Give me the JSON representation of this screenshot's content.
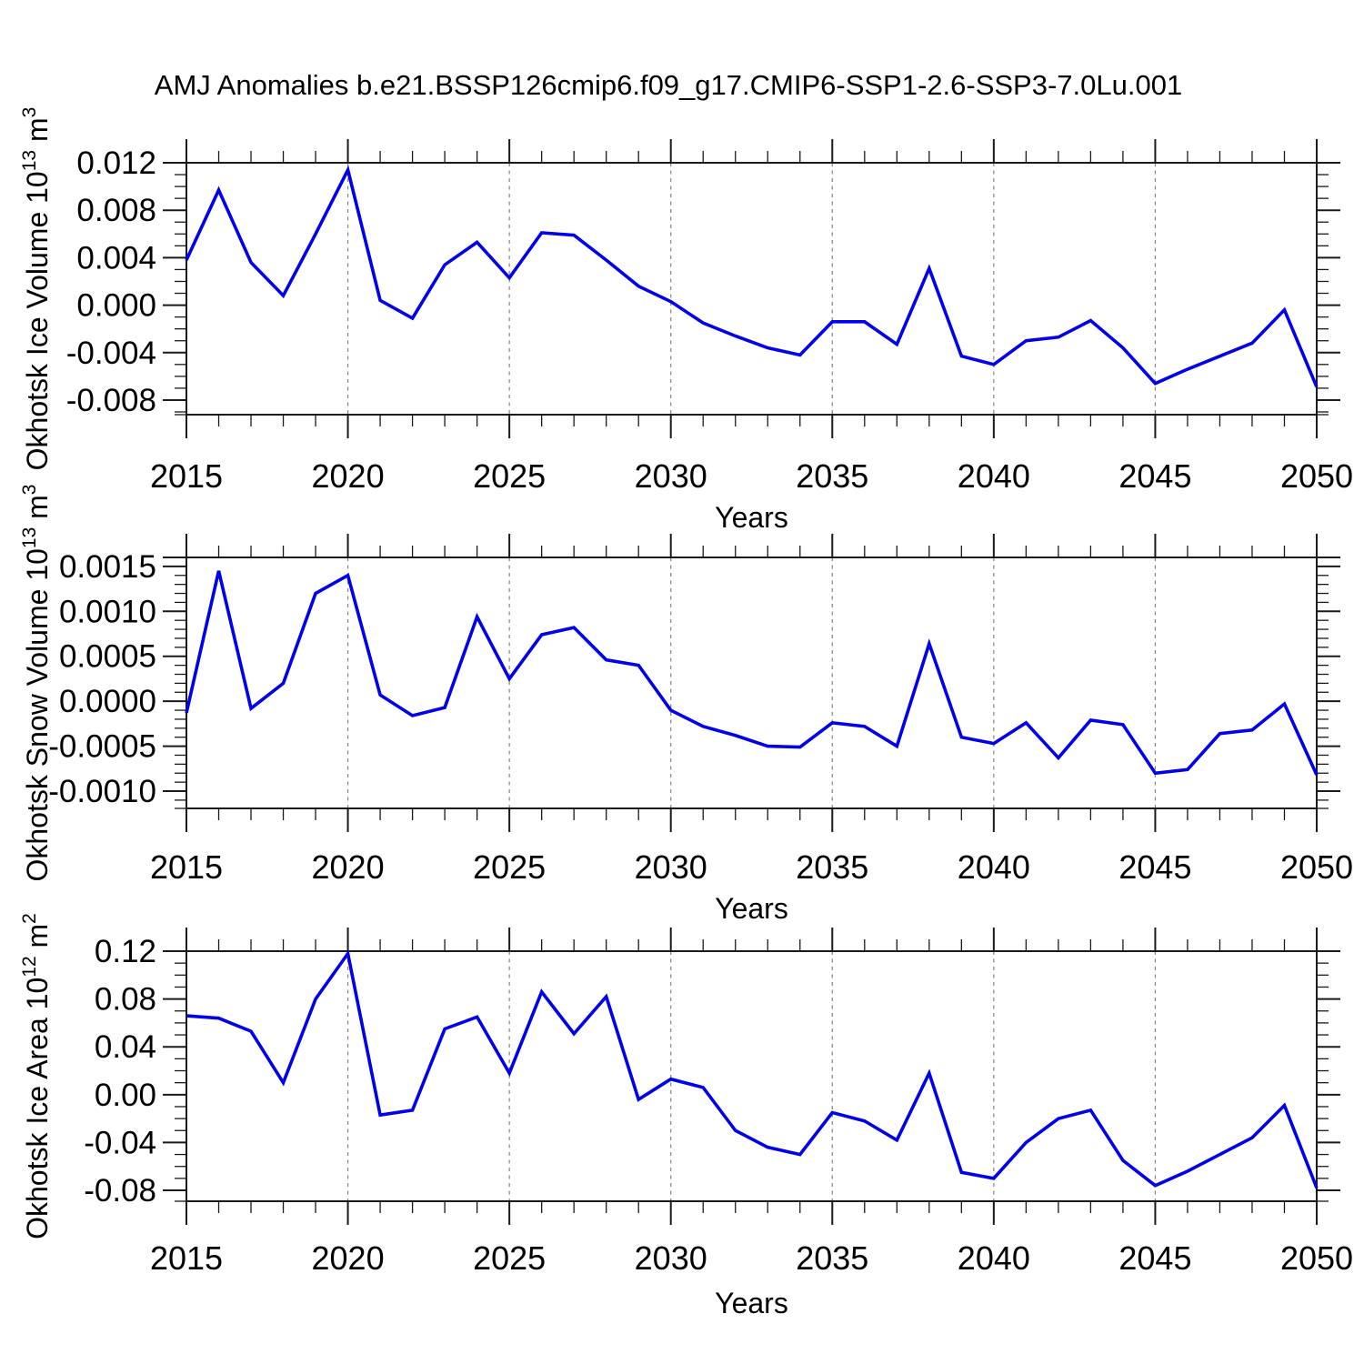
{
  "title": "AMJ Anomalies b.e21.BSSP126cmip6.f09_g17.CMIP6-SSP1-2.6-SSP3-7.0Lu.001",
  "colors": {
    "line": "#0000EE",
    "grid": "#858585",
    "frame": "#1A1A1A",
    "text": "#000000",
    "background": "#FFFFFF"
  },
  "chart_data": [
    {
      "type": "line",
      "name": "ice-volume",
      "ylabel": "Okhotsk Ice Volume 10¹³ m³",
      "ylabel_parts": [
        {
          "text": "Okhotsk Ice Volume 10"
        },
        {
          "text": "13",
          "sup": true
        },
        {
          "text": " m"
        },
        {
          "text": "3",
          "sup": true
        }
      ],
      "xlabel": "Years",
      "xlim": [
        2015,
        2050
      ],
      "ylim": [
        -0.00923,
        0.012
      ],
      "x": [
        2015,
        2016,
        2017,
        2018,
        2019,
        2020,
        2021,
        2022,
        2023,
        2024,
        2025,
        2026,
        2027,
        2028,
        2029,
        2030,
        2031,
        2032,
        2033,
        2034,
        2035,
        2036,
        2037,
        2038,
        2039,
        2040,
        2041,
        2042,
        2043,
        2044,
        2045,
        2046,
        2047,
        2048,
        2049,
        2050
      ],
      "values": [
        0.0038,
        0.0097,
        0.0036,
        0.0008,
        0.006,
        0.0114,
        0.0004,
        -0.0011,
        0.0034,
        0.0053,
        0.0023,
        0.0061,
        0.0059,
        0.0038,
        0.0016,
        0.0003,
        -0.0015,
        -0.0026,
        -0.0036,
        -0.0042,
        -0.0014,
        -0.0014,
        -0.0033,
        0.0031,
        -0.0043,
        -0.005,
        -0.003,
        -0.0027,
        -0.0013,
        -0.0036,
        -0.0066,
        -0.0054,
        -0.0043,
        -0.0032,
        -0.0004,
        -0.0069
      ],
      "yticks": [
        {
          "v": 0.012,
          "label": "0.012"
        },
        {
          "v": 0.008,
          "label": "0.008"
        },
        {
          "v": 0.004,
          "label": "0.004"
        },
        {
          "v": 0.0,
          "label": "0.000"
        },
        {
          "v": -0.004,
          "label": "-0.004"
        },
        {
          "v": -0.008,
          "label": "-0.008"
        }
      ],
      "y_minor_step": 0.001,
      "xticks": [
        {
          "v": 2015,
          "label": "2015"
        },
        {
          "v": 2020,
          "label": "2020"
        },
        {
          "v": 2025,
          "label": "2025"
        },
        {
          "v": 2030,
          "label": "2030"
        },
        {
          "v": 2035,
          "label": "2035"
        },
        {
          "v": 2040,
          "label": "2040"
        },
        {
          "v": 2045,
          "label": "2045"
        },
        {
          "v": 2050,
          "label": "2050"
        }
      ],
      "x_minor_step": 1,
      "x_gridlines": [
        2020,
        2025,
        2030,
        2035,
        2040,
        2045
      ],
      "grid": "vertical-dashed",
      "legend": "none"
    },
    {
      "type": "line",
      "name": "snow-volume",
      "ylabel": "Okhotsk Snow Volume 10¹³ m³",
      "ylabel_parts": [
        {
          "text": "Okhotsk Snow Volume 10"
        },
        {
          "text": "13",
          "sup": true
        },
        {
          "text": " m"
        },
        {
          "text": "3",
          "sup": true
        }
      ],
      "xlabel": "Years",
      "xlim": [
        2015,
        2050
      ],
      "ylim": [
        -0.001192,
        0.0016
      ],
      "x": [
        2015,
        2016,
        2017,
        2018,
        2019,
        2020,
        2021,
        2022,
        2023,
        2024,
        2025,
        2026,
        2027,
        2028,
        2029,
        2030,
        2031,
        2032,
        2033,
        2034,
        2035,
        2036,
        2037,
        2038,
        2039,
        2040,
        2041,
        2042,
        2043,
        2044,
        2045,
        2046,
        2047,
        2048,
        2049,
        2050
      ],
      "values": [
        -0.00013,
        0.00145,
        -8e-05,
        0.0002,
        0.0012,
        0.0014,
        7e-05,
        -0.00016,
        -7e-05,
        0.00094,
        0.00025,
        0.00074,
        0.00082,
        0.00046,
        0.0004,
        -0.0001,
        -0.00028,
        -0.00038,
        -0.0005,
        -0.00051,
        -0.00024,
        -0.00028,
        -0.0005,
        0.00064,
        -0.0004,
        -0.00047,
        -0.00024,
        -0.00063,
        -0.00021,
        -0.00026,
        -0.0008,
        -0.00076,
        -0.00036,
        -0.00032,
        -3e-05,
        -0.00082
      ],
      "yticks": [
        {
          "v": 0.0015,
          "label": "0.0015"
        },
        {
          "v": 0.001,
          "label": "0.0010"
        },
        {
          "v": 0.0005,
          "label": "0.0005"
        },
        {
          "v": 0.0,
          "label": "0.0000"
        },
        {
          "v": -0.0005,
          "label": "-0.0005"
        },
        {
          "v": -0.001,
          "label": "-0.0010"
        }
      ],
      "y_minor_step": 0.0001,
      "xticks": [
        {
          "v": 2015,
          "label": "2015"
        },
        {
          "v": 2020,
          "label": "2020"
        },
        {
          "v": 2025,
          "label": "2025"
        },
        {
          "v": 2030,
          "label": "2030"
        },
        {
          "v": 2035,
          "label": "2035"
        },
        {
          "v": 2040,
          "label": "2040"
        },
        {
          "v": 2045,
          "label": "2045"
        },
        {
          "v": 2050,
          "label": "2050"
        }
      ],
      "x_minor_step": 1,
      "x_gridlines": [
        2020,
        2025,
        2030,
        2035,
        2040,
        2045
      ],
      "grid": "vertical-dashed",
      "legend": "none"
    },
    {
      "type": "line",
      "name": "ice-area",
      "ylabel": "Okhotsk Ice Area 10¹² m²",
      "ylabel_parts": [
        {
          "text": "Okhotsk Ice Area 10"
        },
        {
          "text": "12",
          "sup": true
        },
        {
          "text": " m"
        },
        {
          "text": "2",
          "sup": true
        }
      ],
      "xlabel": "Years",
      "xlim": [
        2015,
        2050
      ],
      "ylim": [
        -0.0891,
        0.12
      ],
      "x": [
        2015,
        2016,
        2017,
        2018,
        2019,
        2020,
        2021,
        2022,
        2023,
        2024,
        2025,
        2026,
        2027,
        2028,
        2029,
        2030,
        2031,
        2032,
        2033,
        2034,
        2035,
        2036,
        2037,
        2038,
        2039,
        2040,
        2041,
        2042,
        2043,
        2044,
        2045,
        2046,
        2047,
        2048,
        2049,
        2050
      ],
      "values": [
        0.066,
        0.064,
        0.053,
        0.01,
        0.08,
        0.118,
        -0.017,
        -0.013,
        0.055,
        0.065,
        0.018,
        0.086,
        0.051,
        0.082,
        -0.004,
        0.013,
        0.006,
        -0.03,
        -0.044,
        -0.05,
        -0.015,
        -0.022,
        -0.038,
        0.018,
        -0.065,
        -0.07,
        -0.04,
        -0.02,
        -0.013,
        -0.055,
        -0.076,
        -0.064,
        -0.05,
        -0.036,
        -0.009,
        -0.078
      ],
      "yticks": [
        {
          "v": 0.12,
          "label": "0.12"
        },
        {
          "v": 0.08,
          "label": "0.08"
        },
        {
          "v": 0.04,
          "label": "0.04"
        },
        {
          "v": 0.0,
          "label": "0.00"
        },
        {
          "v": -0.04,
          "label": "-0.04"
        },
        {
          "v": -0.08,
          "label": "-0.08"
        }
      ],
      "y_minor_step": 0.01,
      "xticks": [
        {
          "v": 2015,
          "label": "2015"
        },
        {
          "v": 2020,
          "label": "2020"
        },
        {
          "v": 2025,
          "label": "2025"
        },
        {
          "v": 2030,
          "label": "2030"
        },
        {
          "v": 2035,
          "label": "2035"
        },
        {
          "v": 2040,
          "label": "2040"
        },
        {
          "v": 2045,
          "label": "2045"
        },
        {
          "v": 2050,
          "label": "2050"
        }
      ],
      "x_minor_step": 1,
      "x_gridlines": [
        2020,
        2025,
        2030,
        2035,
        2040,
        2045
      ],
      "grid": "vertical-dashed",
      "legend": "none"
    }
  ]
}
